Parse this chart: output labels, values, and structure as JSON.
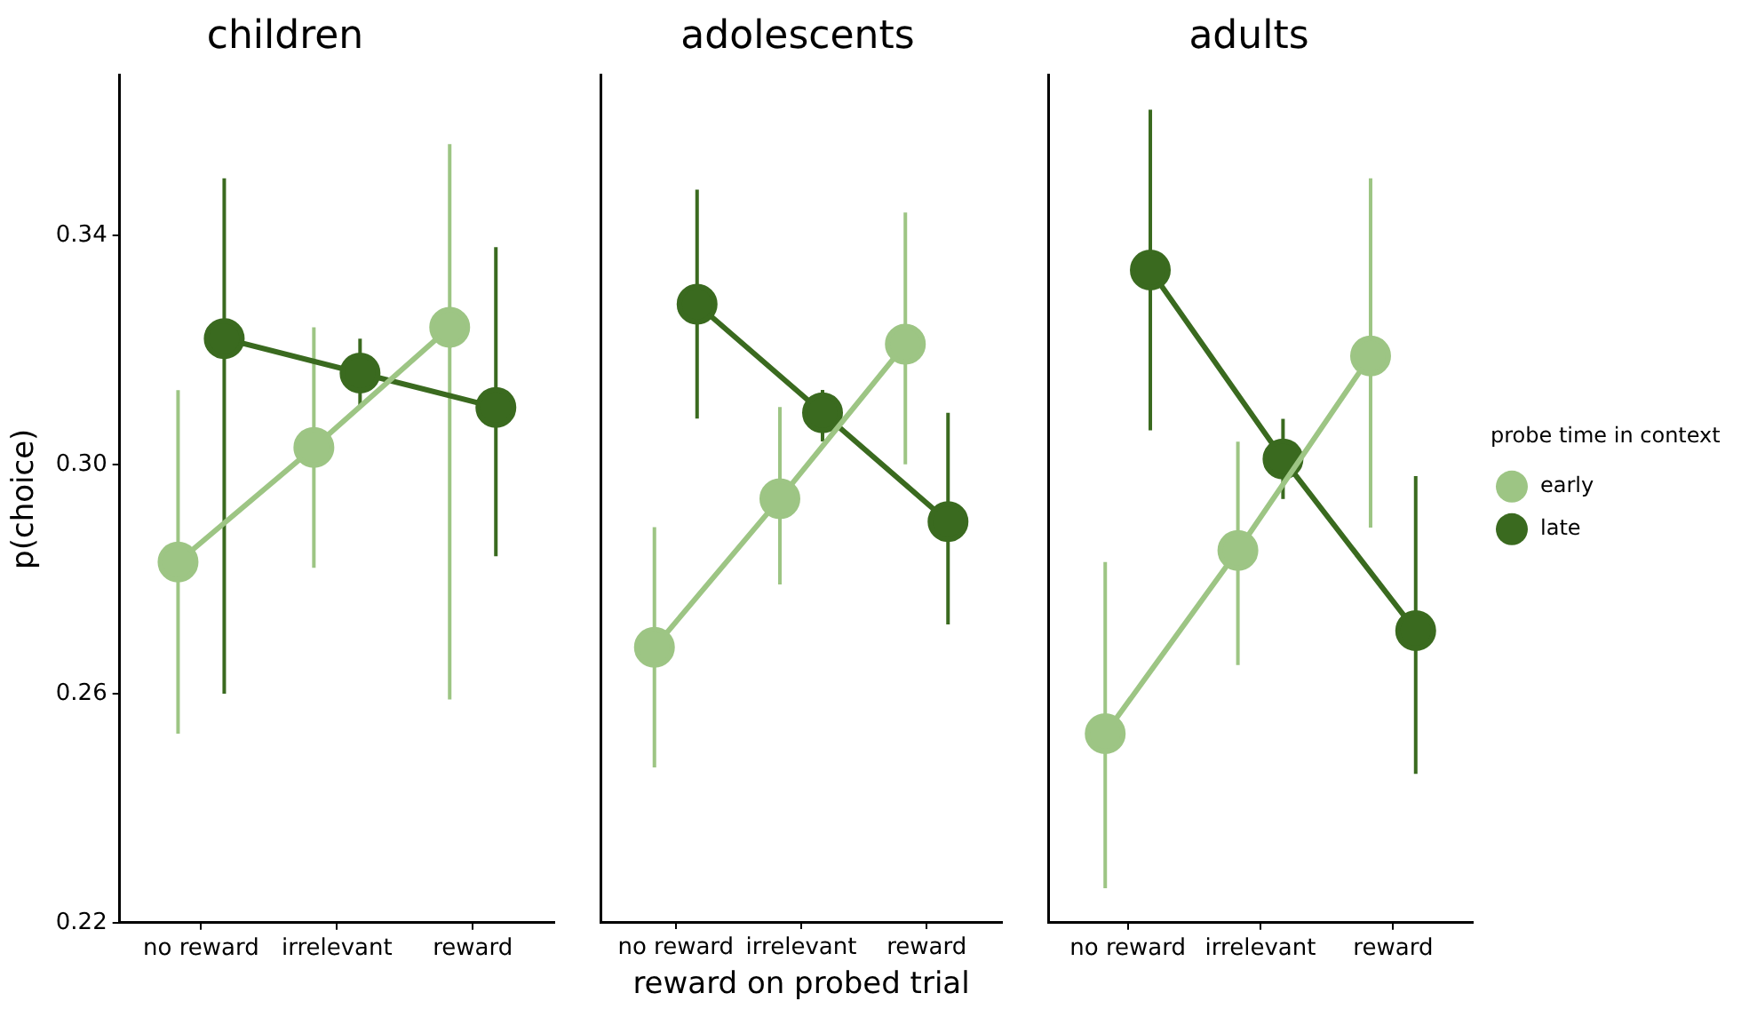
{
  "chart_data": [
    {
      "type": "line",
      "title": "children",
      "ylabel": "p(choice)",
      "categories": [
        "no reward",
        "irrelevant",
        "reward"
      ],
      "ylim": [
        0.22,
        0.368
      ],
      "yticks": [
        0.22,
        0.26,
        {
          "value": 0.3,
          "label": "0.30"
        },
        0.34
      ],
      "grid": false,
      "legend": false,
      "marker": "circle",
      "series": [
        {
          "color": "#9dc584",
          "values": [
            0.283,
            0.303,
            0.324
          ],
          "errors": [
            [
              0.253,
              0.313
            ],
            [
              0.282,
              0.324
            ],
            [
              0.259,
              0.356
            ]
          ]
        },
        {
          "color": "#3a6a1f",
          "values": [
            0.322,
            0.316,
            0.31
          ],
          "errors": [
            [
              0.26,
              0.35
            ],
            [
              0.31,
              0.322
            ],
            [
              0.284,
              0.338
            ]
          ]
        }
      ]
    },
    {
      "type": "line",
      "title": "adolescents",
      "xlabel": "reward on probed trial",
      "categories": [
        "no reward",
        "irrelevant",
        "reward"
      ],
      "ylim": [
        0.22,
        0.368
      ],
      "tick_labels": "x",
      "grid": false,
      "legend": false,
      "marker": "circle",
      "series": [
        {
          "color": "#9dc584",
          "values": [
            0.268,
            0.294,
            0.321
          ],
          "errors": [
            [
              0.247,
              0.289
            ],
            [
              0.279,
              0.31
            ],
            [
              0.3,
              0.344
            ]
          ]
        },
        {
          "color": "#3a6a1f",
          "values": [
            0.328,
            0.309,
            0.29
          ],
          "errors": [
            [
              0.308,
              0.348
            ],
            [
              0.304,
              0.313
            ],
            [
              0.272,
              0.309
            ]
          ]
        }
      ]
    },
    {
      "type": "line",
      "title": "adults",
      "legend_title": "probe time in context",
      "categories": [
        "no reward",
        "irrelevant",
        "reward"
      ],
      "ylim": [
        0.22,
        0.368
      ],
      "tick_labels": "x",
      "grid": false,
      "legend": "right",
      "marker": "circle",
      "series": [
        {
          "name": "early",
          "color": "#9dc584",
          "values": [
            0.253,
            0.285,
            0.319
          ],
          "errors": [
            [
              0.226,
              0.283
            ],
            [
              0.265,
              0.304
            ],
            [
              0.289,
              0.35
            ]
          ]
        },
        {
          "name": "late",
          "color": "#3a6a1f",
          "values": [
            0.334,
            0.301,
            0.271
          ],
          "errors": [
            [
              0.306,
              0.362
            ],
            [
              0.294,
              0.308
            ],
            [
              0.246,
              0.298
            ]
          ]
        }
      ]
    }
  ]
}
